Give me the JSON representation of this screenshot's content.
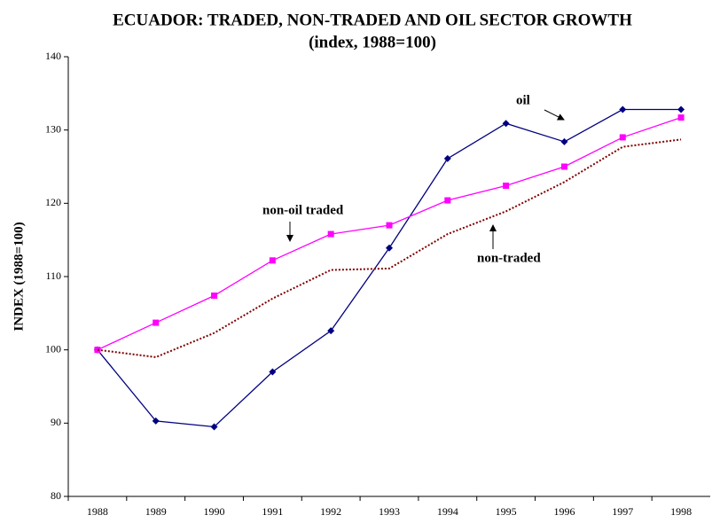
{
  "chart_data": {
    "type": "line",
    "title": "ECUADOR: TRADED, NON-TRADED AND OIL SECTOR GROWTH",
    "subtitle": "(index, 1988=100)",
    "y_label": "INDEX (1988=100)",
    "categories": [
      "1988",
      "1989",
      "1990",
      "1991",
      "1992",
      "1993",
      "1994",
      "1995",
      "1996",
      "1997",
      "1998"
    ],
    "series": [
      {
        "name": "oil",
        "color": "#000080",
        "marker": "diamond",
        "style": "solid",
        "values": [
          100,
          90.3,
          89.5,
          97,
          102.6,
          113.9,
          126.1,
          130.9,
          128.4,
          132.8,
          132.8
        ]
      },
      {
        "name": "non-oil traded",
        "color": "#ff00ff",
        "marker": "square",
        "style": "solid",
        "values": [
          100,
          103.7,
          107.4,
          112.2,
          115.8,
          117,
          120.4,
          122.4,
          125,
          129,
          131.7
        ]
      },
      {
        "name": "non-traded",
        "color": "#800000",
        "marker": "none",
        "style": "dotted",
        "values": [
          100,
          99,
          102.3,
          107,
          110.9,
          111.1,
          115.8,
          118.9,
          122.9,
          127.7,
          128.7
        ]
      }
    ],
    "ylim": [
      80,
      140
    ],
    "yticks": [
      80,
      90,
      100,
      110,
      120,
      130,
      140
    ],
    "grid": false
  }
}
